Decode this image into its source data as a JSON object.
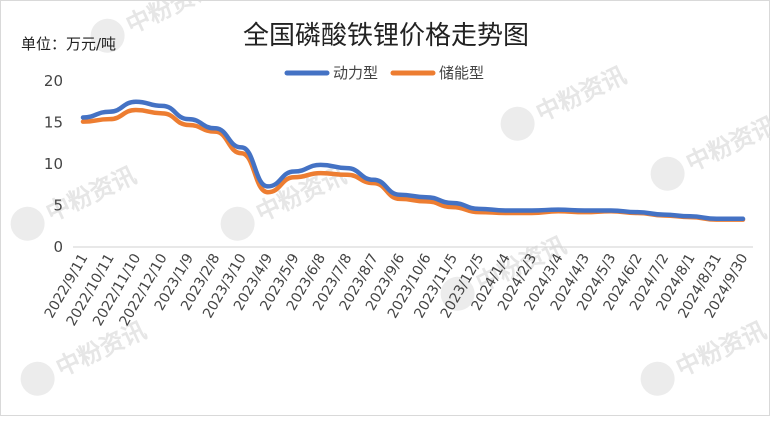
{
  "chart_data": {
    "type": "line",
    "title": "全国磷酸铁锂价格走势图",
    "unit_label": "单位：万元/吨",
    "watermark": "中粉资讯",
    "ylim": [
      0,
      20
    ],
    "yticks": [
      "0",
      "5",
      "10",
      "15",
      "20"
    ],
    "legend_position": "top",
    "grid": false,
    "categories": [
      "2022/9/11",
      "2022/10/11",
      "2022/11/10",
      "2022/12/10",
      "2023/1/9",
      "2023/2/8",
      "2023/3/10",
      "2023/4/9",
      "2023/5/9",
      "2023/6/8",
      "2023/7/8",
      "2023/8/7",
      "2023/9/6",
      "2023/10/6",
      "2023/11/5",
      "2023/12/5",
      "2024/1/4",
      "2024/2/3",
      "2024/3/4",
      "2024/4/3",
      "2024/5/3",
      "2024/6/2",
      "2024/7/2",
      "2024/8/1",
      "2024/8/31",
      "2024/9/30"
    ],
    "series": [
      {
        "name": "动力型",
        "color": "#4472C4",
        "values": [
          15.6,
          16.3,
          17.5,
          17.0,
          15.4,
          14.3,
          12.0,
          7.3,
          9.1,
          9.9,
          9.5,
          8.1,
          6.3,
          6.0,
          5.3,
          4.6,
          4.4,
          4.4,
          4.5,
          4.4,
          4.4,
          4.2,
          3.9,
          3.7,
          3.4,
          3.4
        ]
      },
      {
        "name": "储能型",
        "color": "#ED7D31",
        "values": [
          15.1,
          15.4,
          16.5,
          16.1,
          14.7,
          13.9,
          11.3,
          6.6,
          8.4,
          8.9,
          8.7,
          7.7,
          5.8,
          5.5,
          4.8,
          4.2,
          4.1,
          4.1,
          4.3,
          4.2,
          4.3,
          4.1,
          3.8,
          3.6,
          3.3,
          3.3
        ]
      }
    ]
  }
}
